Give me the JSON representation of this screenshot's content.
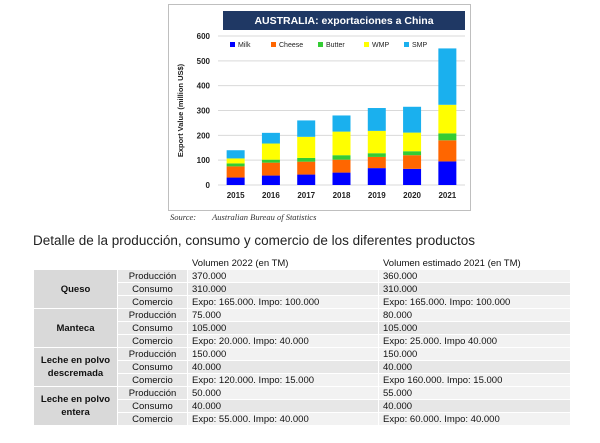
{
  "chart_data": {
    "type": "bar",
    "stacked": true,
    "title": "AUSTRALIA: exportaciones a China",
    "ylabel": "Export Value (million US$)",
    "xlabel": "",
    "ylim": [
      0,
      600
    ],
    "yticks": [
      0,
      100,
      200,
      300,
      400,
      500,
      600
    ],
    "categories": [
      "2015",
      "2016",
      "2017",
      "2018",
      "2019",
      "2020",
      "2021"
    ],
    "legend_position": "top",
    "series": [
      {
        "name": "Milk",
        "color": "#0000ff",
        "values": [
          30,
          38,
          42,
          50,
          68,
          65,
          95
        ]
      },
      {
        "name": "Cheese",
        "color": "#ff6600",
        "values": [
          45,
          52,
          52,
          52,
          45,
          55,
          85
        ]
      },
      {
        "name": "Butter",
        "color": "#33cc33",
        "values": [
          12,
          12,
          15,
          18,
          15,
          16,
          28
        ]
      },
      {
        "name": "WMP",
        "color": "#ffff00",
        "values": [
          20,
          65,
          85,
          95,
          90,
          75,
          115
        ]
      },
      {
        "name": "SMP",
        "color": "#1ab0ee",
        "values": [
          33,
          43,
          66,
          65,
          92,
          104,
          227
        ]
      }
    ]
  },
  "source": {
    "label": "Source:",
    "text": "Australian Bureau of Statistics"
  },
  "section_heading": "Detalle de la producción, consumo y comercio de los diferentes productos",
  "table": {
    "headers": [
      "",
      "",
      "Volumen 2022 (en TM)",
      "Volumen estimado 2021 (en TM)"
    ],
    "groups": [
      {
        "name": "Queso",
        "rows": [
          {
            "metric": "Producción",
            "v2022": "370.000",
            "v2021": "360.000"
          },
          {
            "metric": "Consumo",
            "v2022": "310.000",
            "v2021": "310.000"
          },
          {
            "metric": "Comercio",
            "v2022": "Expo: 165.000. Impo: 100.000",
            "v2021": "Expo: 165.000. Impo: 100.000"
          }
        ]
      },
      {
        "name": "Manteca",
        "rows": [
          {
            "metric": "Producción",
            "v2022": "75.000",
            "v2021": "80.000"
          },
          {
            "metric": "Consumo",
            "v2022": "105.000",
            "v2021": "105.000"
          },
          {
            "metric": "Comercio",
            "v2022": "Expo: 20.000. Impo: 40.000",
            "v2021": "Expo: 25.000. Impo 40.000"
          }
        ]
      },
      {
        "name": "Leche en polvo descremada",
        "rows": [
          {
            "metric": "Producción",
            "v2022": "150.000",
            "v2021": "150.000"
          },
          {
            "metric": "Consumo",
            "v2022": "40.000",
            "v2021": "40.000"
          },
          {
            "metric": "Comercio",
            "v2022": "Expo: 120.000. Impo: 15.000",
            "v2021": "Expo 160.000. Impo: 15.000"
          }
        ]
      },
      {
        "name": "Leche en polvo entera",
        "rows": [
          {
            "metric": "Producción",
            "v2022": "50.000",
            "v2021": "55.000"
          },
          {
            "metric": "Consumo",
            "v2022": "40.000",
            "v2021": "40.000"
          },
          {
            "metric": "Comercio",
            "v2022": "Expo: 55.000. Impo: 40.000",
            "v2021": "Expo: 60.000. Impo: 40.000"
          }
        ]
      }
    ]
  }
}
